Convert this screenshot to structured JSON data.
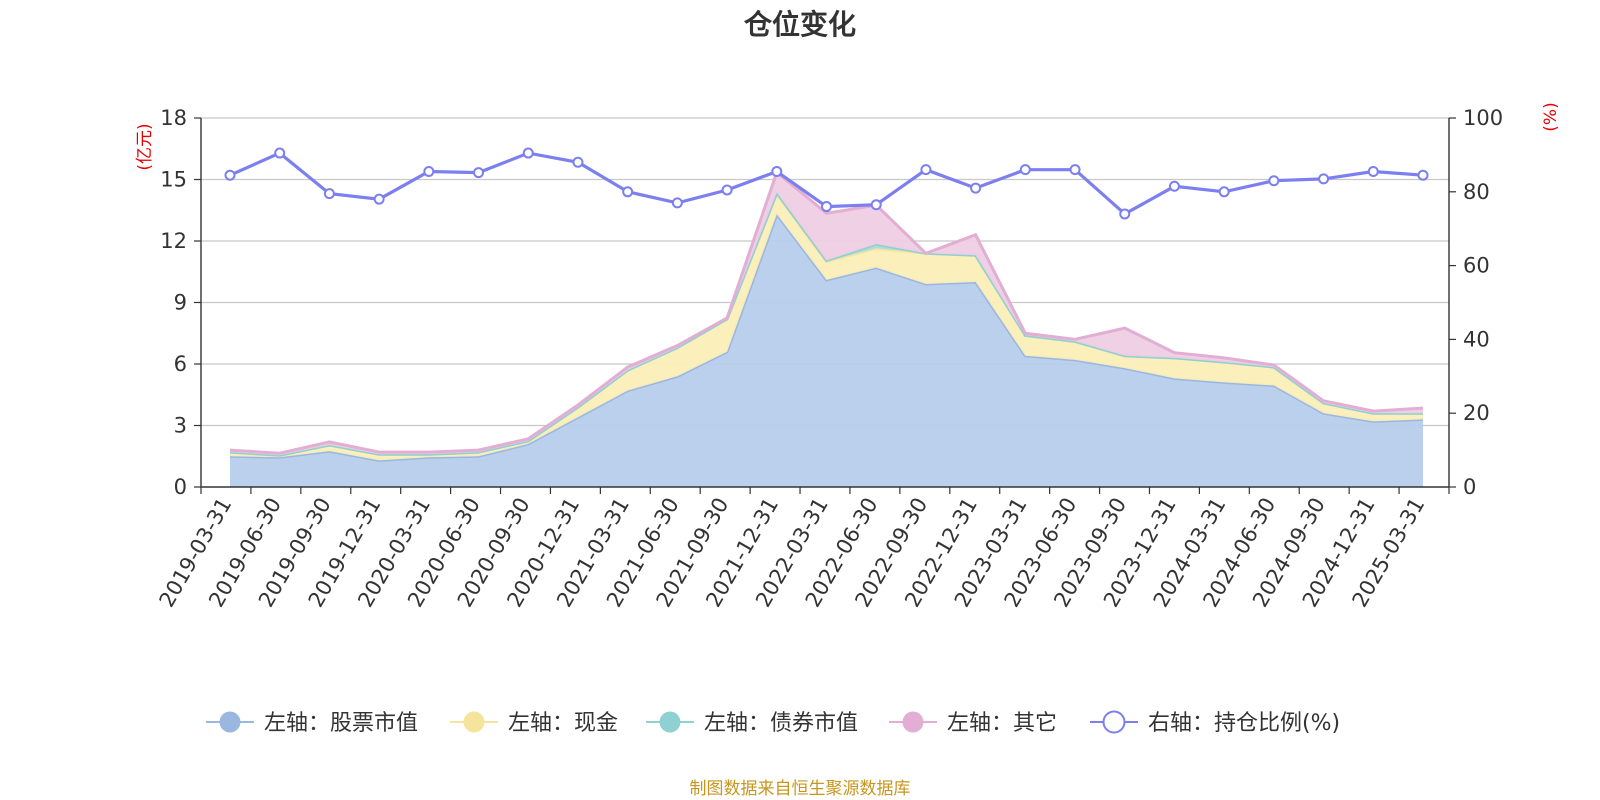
{
  "chart_data": {
    "type": "area",
    "title": "仓位变化",
    "y_left_unit": "(亿元)",
    "y_right_unit": "(%)",
    "y_left_range": [
      0,
      18
    ],
    "y_left_ticks": [
      0,
      3,
      6,
      9,
      12,
      15,
      18
    ],
    "y_right_range": [
      0,
      100
    ],
    "y_right_ticks": [
      0,
      20,
      40,
      60,
      80,
      100
    ],
    "grid": true,
    "legend_position": "bottom",
    "categories": [
      "2019-03-31",
      "2019-06-30",
      "2019-09-30",
      "2019-12-31",
      "2020-03-31",
      "2020-06-30",
      "2020-09-30",
      "2020-12-31",
      "2021-03-31",
      "2021-06-30",
      "2021-09-30",
      "2021-12-31",
      "2022-03-31",
      "2022-06-30",
      "2022-09-30",
      "2022-12-31",
      "2023-03-31",
      "2023-06-30",
      "2023-09-30",
      "2023-12-31",
      "2024-03-31",
      "2024-06-30",
      "2024-09-30",
      "2024-12-31",
      "2025-03-31"
    ],
    "stacked_series": [
      {
        "name": "左轴：股票市值",
        "color": "#9ab7e0",
        "fill": "#b6cdeb",
        "values": [
          1.5,
          1.45,
          1.75,
          1.3,
          1.45,
          1.5,
          2.1,
          3.4,
          4.7,
          5.4,
          6.6,
          13.3,
          10.1,
          10.7,
          9.9,
          10.0,
          6.4,
          6.2,
          5.8,
          5.3,
          5.1,
          4.95,
          3.6,
          3.2,
          3.3
        ]
      },
      {
        "name": "左轴：现金",
        "color": "#f5e49c",
        "fill": "#fbeeb8",
        "values": [
          0.2,
          0.1,
          0.3,
          0.3,
          0.15,
          0.2,
          0.15,
          0.5,
          1.0,
          1.4,
          1.6,
          1.0,
          0.9,
          0.95,
          1.5,
          1.3,
          1.0,
          0.9,
          0.6,
          1.0,
          1.0,
          0.9,
          0.5,
          0.4,
          0.3
        ]
      },
      {
        "name": "左轴：债券市值",
        "color": "#8fd0d2",
        "fill": "#a8dcdc",
        "values": [
          0,
          0,
          0,
          0,
          0,
          0,
          0,
          0,
          0,
          0,
          0,
          0.05,
          0.05,
          0.2,
          0,
          0,
          0,
          0,
          0,
          0,
          0,
          0,
          0,
          0,
          0
        ]
      },
      {
        "name": "左轴：其它",
        "color": "#e2aed3",
        "fill": "#efcde4",
        "values": [
          0.1,
          0.1,
          0.15,
          0.1,
          0.1,
          0.1,
          0.1,
          0.1,
          0.15,
          0.1,
          0.05,
          1.0,
          2.3,
          1.9,
          0,
          1.0,
          0.1,
          0.1,
          1.35,
          0.25,
          0.2,
          0.1,
          0.1,
          0.1,
          0.25
        ]
      }
    ],
    "line_series": {
      "name": "右轴：持仓比例(%)",
      "color": "#7b7ff0",
      "axis": "right",
      "values": [
        84.5,
        90.5,
        79.5,
        78,
        85.5,
        85.2,
        90.5,
        88,
        80,
        77,
        80.5,
        85.5,
        76,
        76.5,
        86,
        81,
        86,
        86,
        74,
        81.5,
        80,
        83,
        83.5,
        85.5,
        84.5
      ]
    },
    "source": "制图数据来自恒生聚源数据库"
  }
}
